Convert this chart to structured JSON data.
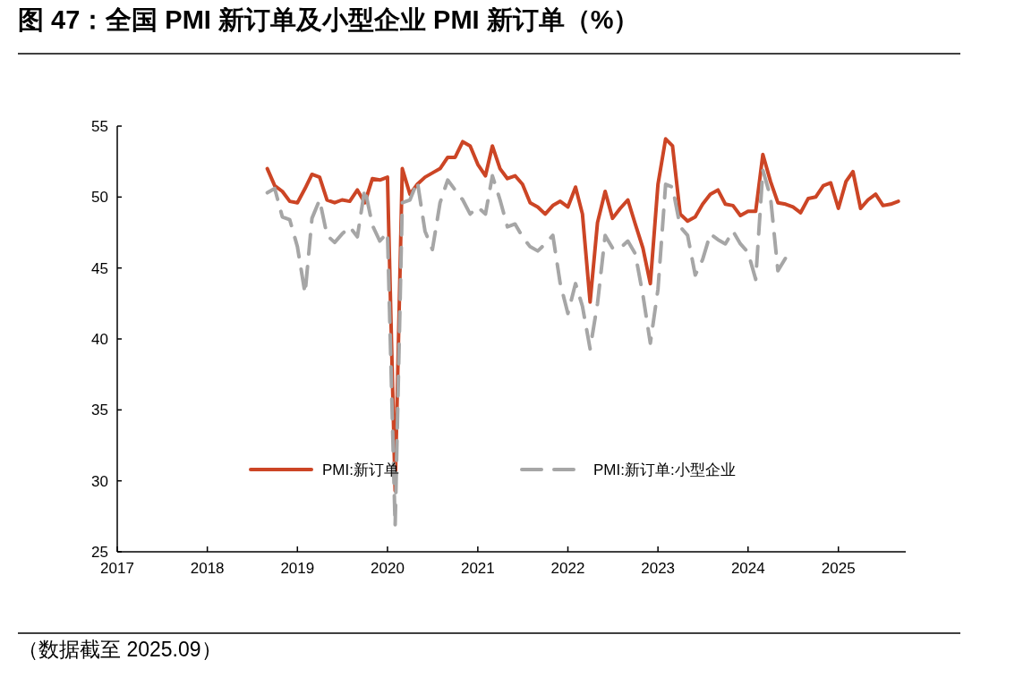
{
  "chart_data": {
    "type": "line",
    "title": "图 47：全国 PMI 新订单及小型企业 PMI 新订单（%）",
    "annotations": [
      "（数据截至 2025.09）"
    ],
    "x": [
      "2018-09",
      "2018-10",
      "2018-11",
      "2018-12",
      "2019-01",
      "2019-02",
      "2019-03",
      "2019-04",
      "2019-05",
      "2019-06",
      "2019-07",
      "2019-08",
      "2019-09",
      "2019-10",
      "2019-11",
      "2019-12",
      "2020-01",
      "2020-02",
      "2020-03",
      "2020-04",
      "2020-05",
      "2020-06",
      "2020-07",
      "2020-08",
      "2020-09",
      "2020-10",
      "2020-11",
      "2020-12",
      "2021-01",
      "2021-02",
      "2021-03",
      "2021-04",
      "2021-05",
      "2021-06",
      "2021-07",
      "2021-08",
      "2021-09",
      "2021-10",
      "2021-11",
      "2021-12",
      "2022-01",
      "2022-02",
      "2022-03",
      "2022-04",
      "2022-05",
      "2022-06",
      "2022-07",
      "2022-08",
      "2022-09",
      "2022-10",
      "2022-11",
      "2022-12",
      "2023-01",
      "2023-02",
      "2023-03",
      "2023-04",
      "2023-05",
      "2023-06",
      "2023-07",
      "2023-08",
      "2023-09",
      "2023-10",
      "2023-11",
      "2023-12",
      "2024-01",
      "2024-02",
      "2024-03",
      "2024-04",
      "2024-05",
      "2024-06",
      "2024-07",
      "2024-08",
      "2024-09",
      "2024-10",
      "2024-11",
      "2024-12",
      "2025-01",
      "2025-02",
      "2025-03",
      "2025-04",
      "2025-05",
      "2025-06",
      "2025-07",
      "2025-08",
      "2025-09"
    ],
    "series": [
      {
        "name": "PMI:新订单",
        "color": "#cc4525",
        "line_style": "solid",
        "values": [
          52.0,
          50.8,
          50.4,
          49.7,
          49.6,
          50.6,
          51.6,
          51.4,
          49.8,
          49.6,
          49.8,
          49.7,
          50.5,
          49.6,
          51.3,
          51.2,
          51.4,
          29.3,
          52.0,
          50.2,
          50.9,
          51.4,
          51.7,
          52.0,
          52.8,
          52.8,
          53.9,
          53.6,
          52.3,
          51.5,
          53.6,
          52.0,
          51.3,
          51.5,
          50.9,
          49.6,
          49.3,
          48.8,
          49.4,
          49.7,
          49.3,
          50.7,
          48.8,
          42.6,
          48.2,
          50.4,
          48.5,
          49.2,
          49.8,
          48.1,
          46.4,
          43.9,
          50.9,
          54.1,
          53.6,
          48.8,
          48.3,
          48.6,
          49.5,
          50.2,
          50.5,
          49.5,
          49.4,
          48.7,
          49.0,
          49.0,
          53.0,
          51.1,
          49.6,
          49.5,
          49.3,
          48.9,
          49.9,
          50.0,
          50.8,
          51.0,
          49.2,
          51.1,
          51.8,
          49.2,
          49.8,
          50.2,
          49.4,
          49.5,
          49.7
        ]
      },
      {
        "name": "PMI:新订单:小型企业",
        "color": "#a6a6a6",
        "line_style": "dashed",
        "values": [
          50.3,
          50.6,
          48.6,
          48.4,
          46.5,
          43.2,
          48.5,
          49.8,
          47.3,
          46.8,
          47.4,
          47.9,
          47.2,
          50.6,
          48.0,
          46.9,
          47.5,
          26.8,
          49.6,
          49.8,
          51.1,
          47.6,
          46.3,
          49.6,
          51.2,
          50.5,
          49.8,
          48.8,
          49.3,
          48.8,
          51.5,
          49.8,
          47.9,
          48.1,
          47.2,
          46.5,
          46.2,
          46.7,
          47.3,
          43.9,
          41.8,
          43.9,
          42.3,
          39.3,
          42.5,
          47.3,
          46.4,
          46.4,
          46.9,
          46.0,
          43.1,
          39.7,
          43.5,
          50.9,
          50.7,
          47.9,
          47.3,
          44.5,
          45.6,
          47.4,
          47.0,
          46.7,
          47.6,
          46.7,
          46.1,
          44.2,
          51.9,
          50.0,
          44.8,
          45.7,
          null,
          null,
          null,
          null,
          null,
          null,
          null,
          null,
          null,
          null,
          null,
          null,
          null,
          null,
          null
        ]
      }
    ],
    "xlim": [
      "2017-01",
      "2025-10"
    ],
    "xticks": [
      "2017",
      "2018",
      "2019",
      "2020",
      "2021",
      "2022",
      "2023",
      "2024",
      "2025"
    ],
    "ylim": [
      25,
      55
    ],
    "yticks": [
      25,
      30,
      35,
      40,
      45,
      50,
      55
    ],
    "grid": false,
    "legend": "bottom"
  }
}
